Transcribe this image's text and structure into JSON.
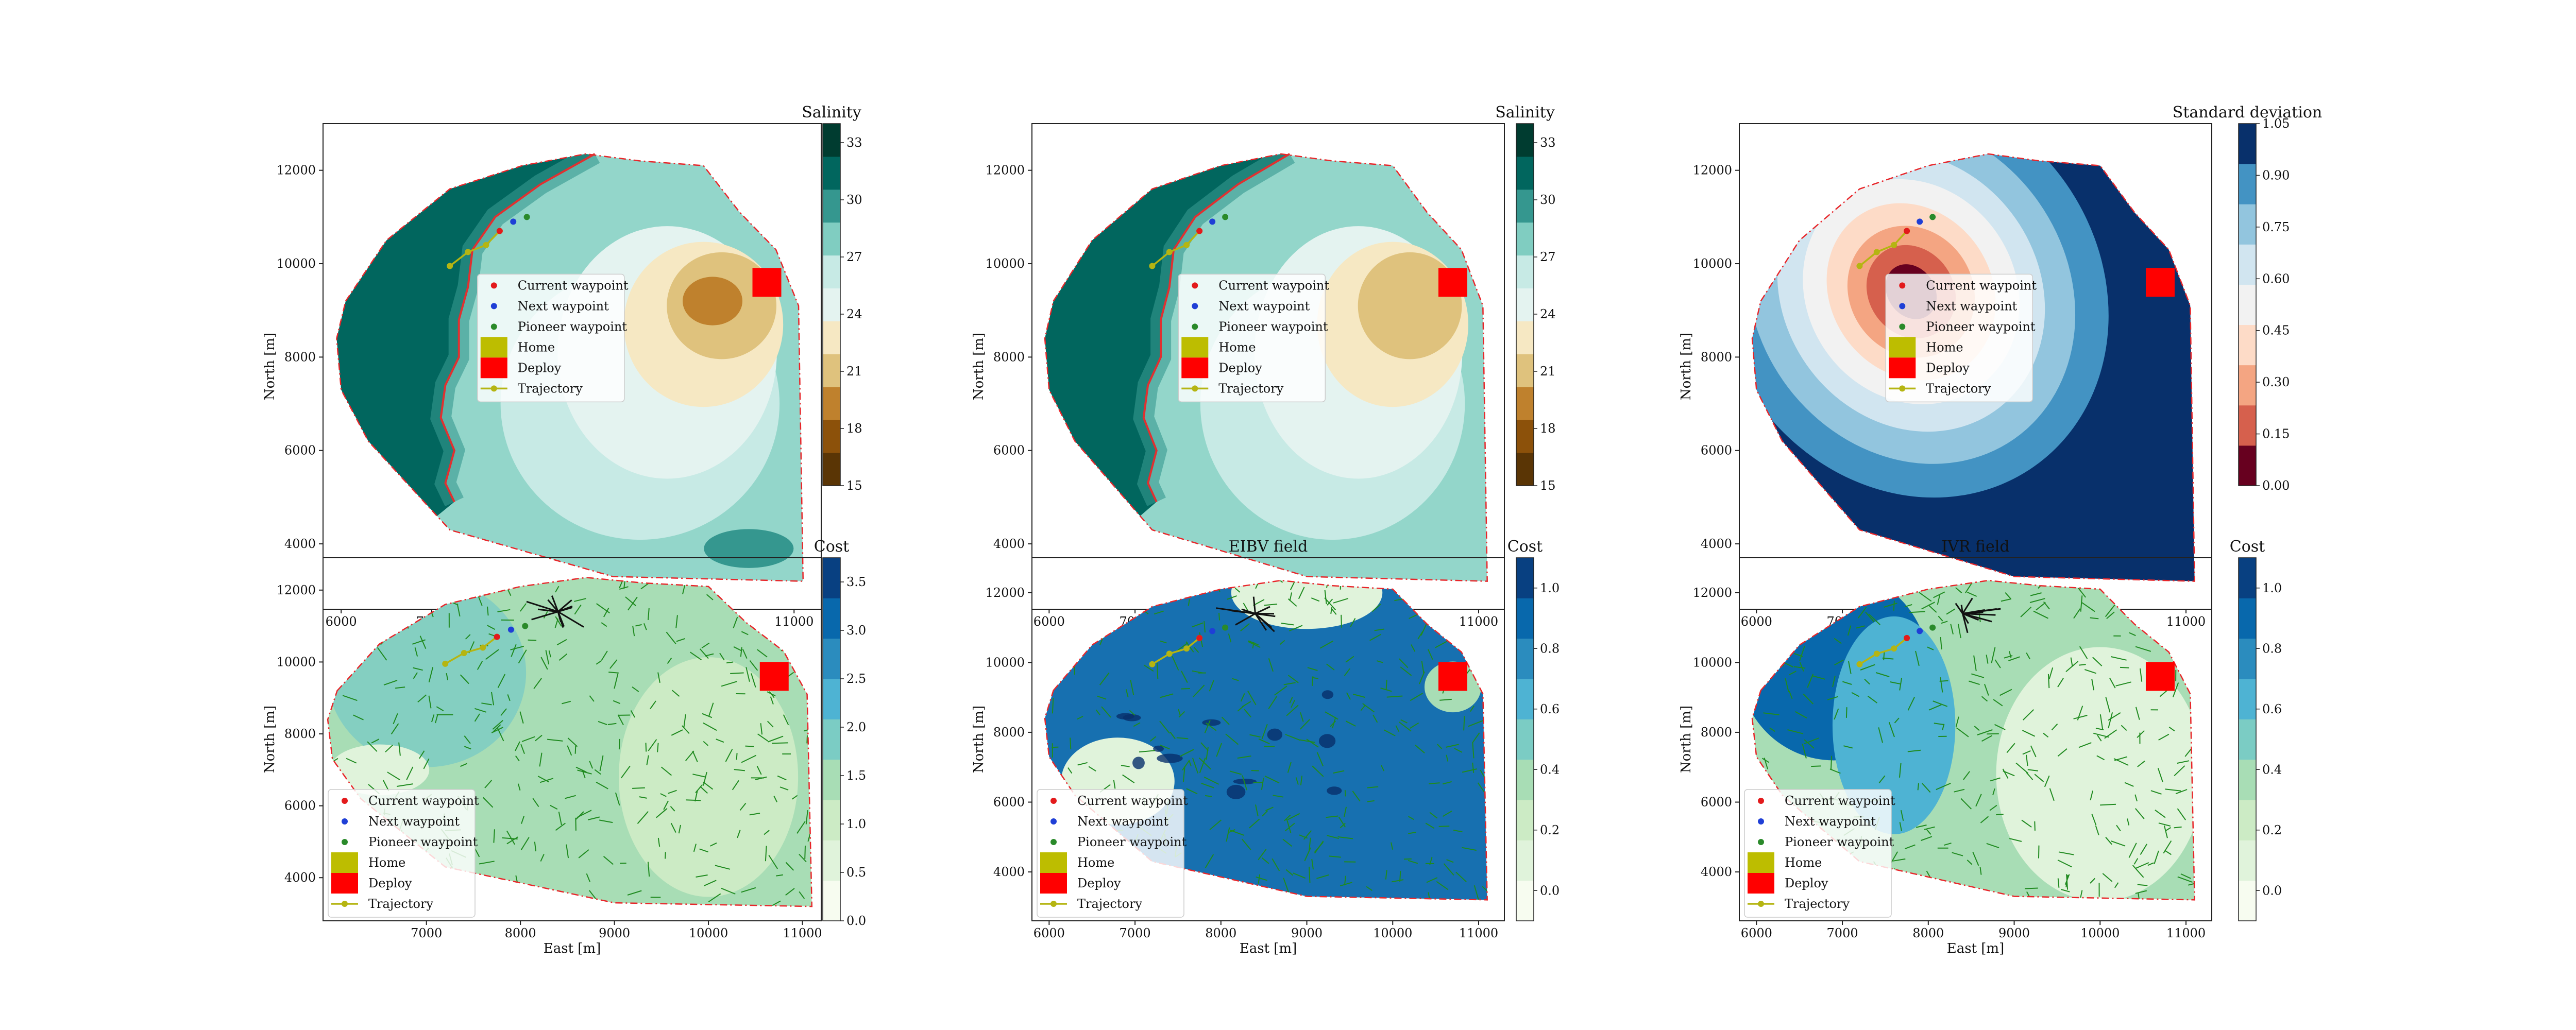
{
  "legend_items": [
    {
      "label": "Current waypoint",
      "kind": "dot",
      "color": "#e31a1c"
    },
    {
      "label": "Next waypoint",
      "kind": "dot",
      "color": "#1f3fd6"
    },
    {
      "label": "Pioneer waypoint",
      "kind": "dot",
      "color": "#2a8a2a"
    },
    {
      "label": "Home",
      "kind": "square",
      "color": "#bdbd00"
    },
    {
      "label": "Deploy",
      "kind": "square",
      "color": "#ff0000"
    },
    {
      "label": "Trajectory",
      "kind": "line",
      "color": "#b5b512"
    }
  ],
  "colors": {
    "boundary": "#e8262a",
    "front": "#e03030",
    "trajectory": "#b5b512",
    "path_tree": "#1f8a1f",
    "black_tree": "#111111",
    "deploy": "#ff0000"
  },
  "chart_data": [
    {
      "type": "contour",
      "id": "salinity-field",
      "title": "",
      "colorbar_title": "Salinity",
      "xlabel": "East [m]",
      "ylabel": "North [m]",
      "xlim": [
        5800,
        11300
      ],
      "ylim": [
        2600,
        13000
      ],
      "xticks": [
        6000,
        7000,
        8000,
        9000,
        10000,
        11000
      ],
      "yticks": [
        4000,
        6000,
        8000,
        10000,
        12000
      ],
      "cbar_range": [
        15,
        34
      ],
      "cbar_ticks": [
        15,
        18,
        21,
        24,
        27,
        30,
        33
      ],
      "cmap": "BrBG",
      "legend_position": "center",
      "trajectory": [
        [
          7200,
          9950
        ],
        [
          7400,
          10250
        ],
        [
          7600,
          10400
        ],
        [
          7750,
          10700
        ]
      ],
      "current_waypoint": [
        7750,
        10700
      ],
      "next_waypoint": [
        7900,
        10900
      ],
      "pioneer_waypoint": [
        8050,
        11000
      ],
      "deploy": [
        10700,
        9600
      ]
    },
    {
      "type": "contour",
      "id": "salinity-prior",
      "title": "",
      "colorbar_title": "Salinity",
      "xlabel": "East [m]",
      "ylabel": "North [m]",
      "xlim": [
        5800,
        11300
      ],
      "ylim": [
        2600,
        13000
      ],
      "xticks": [
        6000,
        7000,
        8000,
        9000,
        10000,
        11000
      ],
      "yticks": [
        4000,
        6000,
        8000,
        10000,
        12000
      ],
      "cbar_range": [
        15,
        34
      ],
      "cbar_ticks": [
        15,
        18,
        21,
        24,
        27,
        30,
        33
      ],
      "cmap": "BrBG",
      "legend_position": "center",
      "trajectory": [
        [
          7200,
          9950
        ],
        [
          7400,
          10250
        ],
        [
          7600,
          10400
        ],
        [
          7750,
          10700
        ]
      ],
      "current_waypoint": [
        7750,
        10700
      ],
      "next_waypoint": [
        7900,
        10900
      ],
      "pioneer_waypoint": [
        8050,
        11000
      ],
      "deploy": [
        10700,
        9600
      ]
    },
    {
      "type": "contour",
      "id": "std-field",
      "title": "",
      "colorbar_title": "Standard deviation",
      "xlabel": "East [m]",
      "ylabel": "North [m]",
      "xlim": [
        5800,
        11300
      ],
      "ylim": [
        2600,
        13000
      ],
      "xticks": [
        6000,
        7000,
        8000,
        9000,
        10000,
        11000
      ],
      "yticks": [
        4000,
        6000,
        8000,
        10000,
        12000
      ],
      "cbar_range": [
        0,
        1.05
      ],
      "cbar_ticks": [
        "0.00",
        "0.15",
        "0.30",
        "0.45",
        "0.60",
        "0.75",
        "0.90",
        "1.05"
      ],
      "cmap": "RdBu",
      "legend_position": "center",
      "trajectory": [
        [
          7200,
          9950
        ],
        [
          7400,
          10250
        ],
        [
          7600,
          10400
        ],
        [
          7750,
          10700
        ]
      ],
      "current_waypoint": [
        7750,
        10700
      ],
      "next_waypoint": [
        7900,
        10900
      ],
      "pioneer_waypoint": [
        8050,
        11000
      ],
      "deploy": [
        10700,
        9600
      ]
    },
    {
      "type": "contour",
      "id": "cost-total",
      "title": "",
      "colorbar_title": "Cost",
      "xlabel": "East [m]",
      "ylabel": "North [m]",
      "xlim": [
        5900,
        11200
      ],
      "ylim": [
        2800,
        12900
      ],
      "xticks": [
        7000,
        8000,
        9000,
        10000,
        11000
      ],
      "yticks": [
        4000,
        6000,
        8000,
        10000,
        12000
      ],
      "cbar_range": [
        0,
        3.75
      ],
      "cbar_ticks": [
        "0.0",
        "0.5",
        "1.0",
        "1.5",
        "2.0",
        "2.5",
        "3.0",
        "3.5"
      ],
      "cmap": "GnBu",
      "legend_position": "lower left",
      "trajectory": [
        [
          7200,
          9950
        ],
        [
          7400,
          10250
        ],
        [
          7600,
          10400
        ],
        [
          7750,
          10700
        ]
      ],
      "current_waypoint": [
        7750,
        10700
      ],
      "next_waypoint": [
        7900,
        10900
      ],
      "pioneer_waypoint": [
        8050,
        11000
      ],
      "deploy": [
        10700,
        9600
      ]
    },
    {
      "type": "contour",
      "id": "cost-eibv",
      "title": "EIBV field",
      "colorbar_title": "Cost",
      "xlabel": "East [m]",
      "ylabel": "North [m]",
      "xlim": [
        5800,
        11300
      ],
      "ylim": [
        2600,
        13000
      ],
      "xticks": [
        6000,
        7000,
        8000,
        9000,
        10000,
        11000
      ],
      "yticks": [
        4000,
        6000,
        8000,
        10000,
        12000
      ],
      "cbar_range": [
        -0.1,
        1.1
      ],
      "cbar_ticks": [
        "0.0",
        "0.2",
        "0.4",
        "0.6",
        "0.8",
        "1.0"
      ],
      "cmap": "GnBu",
      "legend_position": "lower left",
      "trajectory": [
        [
          7200,
          9950
        ],
        [
          7400,
          10250
        ],
        [
          7600,
          10400
        ],
        [
          7750,
          10700
        ]
      ],
      "current_waypoint": [
        7750,
        10700
      ],
      "next_waypoint": [
        7900,
        10900
      ],
      "pioneer_waypoint": [
        8050,
        11000
      ],
      "deploy": [
        10700,
        9600
      ]
    },
    {
      "type": "contour",
      "id": "cost-ivr",
      "title": "IVR field",
      "colorbar_title": "Cost",
      "xlabel": "East [m]",
      "ylabel": "North [m]",
      "xlim": [
        5800,
        11300
      ],
      "ylim": [
        2600,
        13000
      ],
      "xticks": [
        6000,
        7000,
        8000,
        9000,
        10000,
        11000
      ],
      "yticks": [
        4000,
        6000,
        8000,
        10000,
        12000
      ],
      "cbar_range": [
        -0.1,
        1.1
      ],
      "cbar_ticks": [
        "0.0",
        "0.2",
        "0.4",
        "0.6",
        "0.8",
        "1.0"
      ],
      "cmap": "GnBu",
      "legend_position": "lower left",
      "trajectory": [
        [
          7200,
          9950
        ],
        [
          7400,
          10250
        ],
        [
          7600,
          10400
        ],
        [
          7750,
          10700
        ]
      ],
      "current_waypoint": [
        7750,
        10700
      ],
      "next_waypoint": [
        7900,
        10900
      ],
      "pioneer_waypoint": [
        8050,
        11000
      ],
      "deploy": [
        10700,
        9600
      ]
    }
  ]
}
